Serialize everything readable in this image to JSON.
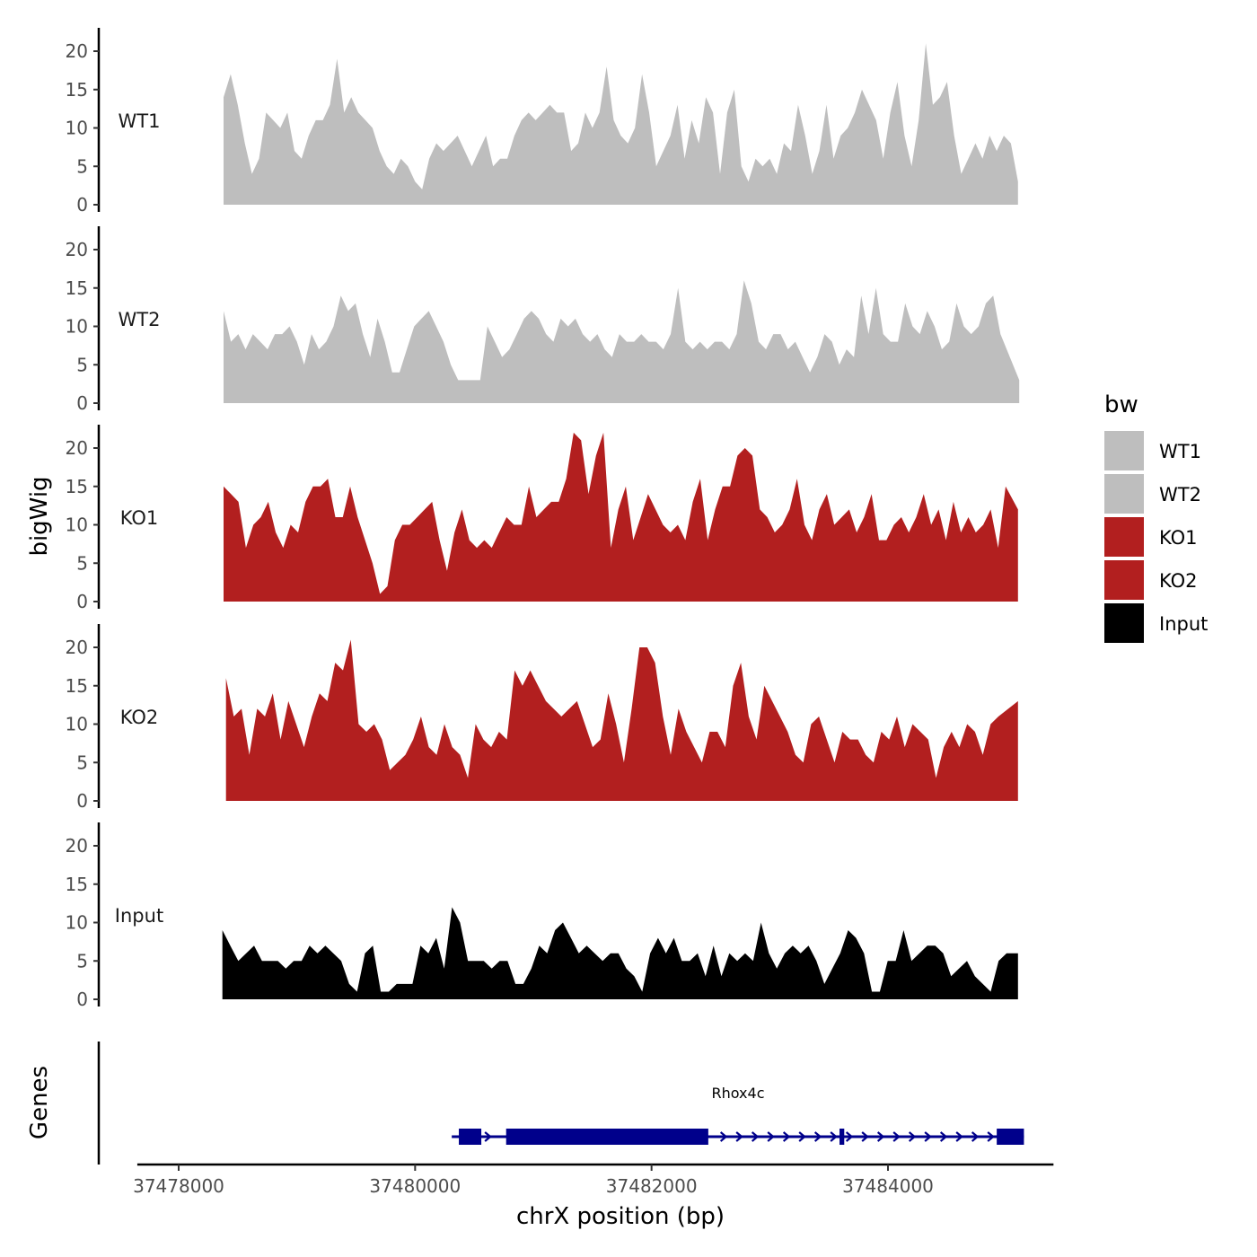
{
  "chart_data": {
    "type": "area",
    "ylabel": "bigWig",
    "xlabel": "chrX position (bp)",
    "ylim": [
      0,
      22
    ],
    "yticks": [
      0,
      5,
      10,
      15,
      20
    ],
    "xlim": [
      37477650,
      37485400
    ],
    "xticks": [
      37478000,
      37480000,
      37482000,
      37484000
    ],
    "xtick_labels": [
      "37478000",
      "37480000",
      "37482000",
      "37484000"
    ],
    "x_range": [
      37478380,
      37485110
    ],
    "legend": {
      "title": "bw",
      "entries": [
        {
          "label": "WT1",
          "color": "#bebebe"
        },
        {
          "label": "WT2",
          "color": "#bebebe"
        },
        {
          "label": "KO1",
          "color": "#b21f1f"
        },
        {
          "label": "KO2",
          "color": "#b21f1f"
        },
        {
          "label": "Input",
          "color": "#000000"
        }
      ]
    },
    "tracks": [
      {
        "name": "WT1",
        "color": "#bebebe",
        "values": [
          14,
          17,
          13,
          8,
          4,
          6,
          12,
          11,
          10,
          12,
          7,
          6,
          9,
          11,
          11,
          13,
          19,
          12,
          14,
          12,
          11,
          10,
          7,
          5,
          4,
          6,
          5,
          3,
          2,
          6,
          8,
          7,
          8,
          9,
          7,
          5,
          7,
          9,
          5,
          6,
          6,
          9,
          11,
          12,
          11,
          12,
          13,
          12,
          12,
          7,
          8,
          12,
          10,
          12,
          18,
          11,
          9,
          8,
          10,
          17,
          12,
          5,
          7,
          9,
          13,
          6,
          11,
          8,
          14,
          12,
          4,
          12,
          15,
          5,
          3,
          6,
          5,
          6,
          4,
          8,
          7,
          13,
          9,
          4,
          7,
          13,
          6,
          9,
          10,
          12,
          15,
          13,
          11,
          6,
          12,
          16,
          9,
          5,
          11,
          21,
          13,
          14,
          16,
          9,
          4,
          6,
          8,
          6,
          9,
          7,
          9,
          8,
          3
        ],
        "x": [
          37478380,
          37478440,
          37478500,
          37478560,
          37478620,
          37478680,
          37478740,
          37478800,
          37478860,
          37478920,
          37478980,
          37479040,
          37479100,
          37479160,
          37479220,
          37479280,
          37479340,
          37479400,
          37479460,
          37479520,
          37479580,
          37479640,
          37479700,
          37479760,
          37479820,
          37479880,
          37479940,
          37480000,
          37480060,
          37480120,
          37480180,
          37480240,
          37480300,
          37480360,
          37480420,
          37480480,
          37480540,
          37480600,
          37480660,
          37480720,
          37480780,
          37480840,
          37480900,
          37480960,
          37481020,
          37481080,
          37481140,
          37481200,
          37481260,
          37481320,
          37481380,
          37481440,
          37481500,
          37481560,
          37481620,
          37481680,
          37481740,
          37481800,
          37481860,
          37481920,
          37481980,
          37482040,
          37482100,
          37482160,
          37482220,
          37482280,
          37482340,
          37482400,
          37482460,
          37482520,
          37482580,
          37482640,
          37482700,
          37482760,
          37482820,
          37482880,
          37482940,
          37483000,
          37483060,
          37483120,
          37483180,
          37483240,
          37483300,
          37483360,
          37483420,
          37483480,
          37483540,
          37483600,
          37483660,
          37483720,
          37483780,
          37483840,
          37483900,
          37483960,
          37484020,
          37484080,
          37484140,
          37484200,
          37484260,
          37484320,
          37484380,
          37484440,
          37484500,
          37484560,
          37484620,
          37484680,
          37484740,
          37484800,
          37484860,
          37484920,
          37484980,
          37485040,
          37485100
        ]
      },
      {
        "name": "WT2",
        "color": "#bebebe",
        "values": [
          12,
          8,
          9,
          7,
          9,
          8,
          7,
          9,
          9,
          10,
          8,
          5,
          9,
          7,
          8,
          10,
          14,
          12,
          13,
          9,
          6,
          11,
          8,
          4,
          4,
          7,
          10,
          11,
          12,
          10,
          8,
          5,
          3,
          3,
          3,
          3,
          10,
          8,
          6,
          7,
          9,
          11,
          12,
          11,
          9,
          8,
          11,
          10,
          11,
          9,
          8,
          9,
          7,
          6,
          9,
          8,
          8,
          9,
          8,
          8,
          7,
          9,
          15,
          8,
          7,
          8,
          7,
          8,
          8,
          7,
          9,
          16,
          13,
          8,
          7,
          9,
          9,
          7,
          8,
          6,
          4,
          6,
          9,
          8,
          5,
          7,
          6,
          14,
          9,
          15,
          9,
          8,
          8,
          13,
          10,
          9,
          12,
          10,
          7,
          8,
          13,
          10,
          9,
          10,
          13,
          14,
          9,
          3
        ],
        "x": [
          37478380,
          37478442,
          37478504,
          37478566,
          37478628,
          37478690,
          37478752,
          37478814,
          37478876,
          37478938,
          37479000,
          37479062,
          37479124,
          37479186,
          37479248,
          37479310,
          37479372,
          37479434,
          37479496,
          37479558,
          37479620,
          37479682,
          37479744,
          37479806,
          37479868,
          37479930,
          37479992,
          37480054,
          37480116,
          37480178,
          37480240,
          37480302,
          37480364,
          37480426,
          37480488,
          37480550,
          37480612,
          37480674,
          37480736,
          37480798,
          37480860,
          37480922,
          37480984,
          37481046,
          37481108,
          37481170,
          37481232,
          37481294,
          37481356,
          37481418,
          37481480,
          37481542,
          37481604,
          37481666,
          37481728,
          37481790,
          37481852,
          37481914,
          37481976,
          37482038,
          37482100,
          37482162,
          37482224,
          37482286,
          37482348,
          37482410,
          37482472,
          37482534,
          37482596,
          37482658,
          37482720,
          37482782,
          37482844,
          37482906,
          37482968,
          37483030,
          37483092,
          37483154,
          37483216,
          37483278,
          37483340,
          37483402,
          37483464,
          37483526,
          37483588,
          37483650,
          37483712,
          37483774,
          37483836,
          37483898,
          37483960,
          37484022,
          37484084,
          37484146,
          37484208,
          37484270,
          37484332,
          37484394,
          37484456,
          37484518,
          37484580,
          37484642,
          37484704,
          37484766,
          37484828,
          37484890,
          37484952,
          37485110
        ]
      },
      {
        "name": "KO1",
        "color": "#b21f1f",
        "values": [
          15,
          14,
          13,
          7,
          10,
          11,
          13,
          9,
          7,
          10,
          9,
          13,
          15,
          15,
          16,
          11,
          11,
          15,
          11,
          8,
          5,
          1,
          2,
          8,
          10,
          10,
          11,
          12,
          13,
          8,
          4,
          9,
          12,
          8,
          7,
          8,
          7,
          9,
          11,
          10,
          10,
          15,
          11,
          12,
          13,
          13,
          16,
          22,
          21,
          14,
          19,
          22,
          7,
          12,
          15,
          8,
          11,
          14,
          12,
          10,
          9,
          10,
          8,
          13,
          16,
          8,
          12,
          15,
          15,
          19,
          20,
          19,
          12,
          11,
          9,
          10,
          12,
          16,
          10,
          8,
          12,
          14,
          10,
          11,
          12,
          9,
          11,
          14,
          8,
          8,
          10,
          11,
          9,
          11,
          14,
          10,
          12,
          8,
          13,
          9,
          11,
          9,
          10,
          12,
          7,
          15,
          12
        ],
        "x": [
          37478380,
          37478443,
          37478506,
          37478569,
          37478632,
          37478695,
          37478758,
          37478821,
          37478884,
          37478947,
          37479010,
          37479073,
          37479136,
          37479199,
          37479262,
          37479325,
          37479388,
          37479451,
          37479514,
          37479577,
          37479640,
          37479703,
          37479766,
          37479829,
          37479892,
          37479955,
          37480018,
          37480081,
          37480144,
          37480207,
          37480270,
          37480333,
          37480396,
          37480459,
          37480522,
          37480585,
          37480648,
          37480711,
          37480774,
          37480837,
          37480900,
          37480963,
          37481026,
          37481089,
          37481152,
          37481215,
          37481278,
          37481341,
          37481404,
          37481467,
          37481530,
          37481593,
          37481656,
          37481719,
          37481782,
          37481845,
          37481908,
          37481971,
          37482034,
          37482097,
          37482160,
          37482223,
          37482286,
          37482349,
          37482412,
          37482475,
          37482538,
          37482601,
          37482664,
          37482727,
          37482790,
          37482853,
          37482916,
          37482979,
          37483042,
          37483105,
          37483168,
          37483231,
          37483294,
          37483357,
          37483420,
          37483483,
          37483546,
          37483609,
          37483672,
          37483735,
          37483798,
          37483861,
          37483924,
          37483987,
          37484050,
          37484113,
          37484176,
          37484239,
          37484302,
          37484365,
          37484428,
          37484491,
          37484554,
          37484617,
          37484680,
          37484743,
          37484806,
          37484869,
          37484932,
          37484995,
          37485100
        ]
      },
      {
        "name": "KO2",
        "color": "#b21f1f",
        "values": [
          16,
          11,
          12,
          6,
          12,
          11,
          14,
          8,
          13,
          10,
          7,
          11,
          14,
          13,
          18,
          17,
          21,
          10,
          9,
          10,
          8,
          4,
          5,
          6,
          8,
          11,
          7,
          6,
          10,
          7,
          6,
          3,
          10,
          8,
          7,
          9,
          8,
          17,
          15,
          17,
          15,
          13,
          12,
          11,
          12,
          13,
          10,
          7,
          8,
          14,
          10,
          5,
          12,
          20,
          20,
          18,
          11,
          6,
          12,
          9,
          7,
          5,
          9,
          9,
          7,
          15,
          18,
          11,
          8,
          15,
          13,
          11,
          9,
          6,
          5,
          10,
          11,
          8,
          5,
          9,
          8,
          8,
          6,
          5,
          9,
          8,
          11,
          7,
          10,
          9,
          8,
          3,
          7,
          9,
          7,
          10,
          9,
          6,
          10,
          11,
          13
        ],
        "x": [
          37478400,
          37478466,
          37478532,
          37478598,
          37478664,
          37478730,
          37478796,
          37478862,
          37478928,
          37478994,
          37479060,
          37479126,
          37479192,
          37479258,
          37479324,
          37479390,
          37479456,
          37479522,
          37479588,
          37479654,
          37479720,
          37479786,
          37479852,
          37479918,
          37479984,
          37480050,
          37480116,
          37480182,
          37480248,
          37480314,
          37480380,
          37480446,
          37480512,
          37480578,
          37480644,
          37480710,
          37480776,
          37480842,
          37480908,
          37480974,
          37481040,
          37481106,
          37481172,
          37481238,
          37481304,
          37481370,
          37481436,
          37481502,
          37481568,
          37481634,
          37481700,
          37481766,
          37481832,
          37481898,
          37481964,
          37482030,
          37482096,
          37482162,
          37482228,
          37482294,
          37482360,
          37482426,
          37482492,
          37482558,
          37482624,
          37482690,
          37482756,
          37482822,
          37482888,
          37482954,
          37483020,
          37483086,
          37483152,
          37483218,
          37483284,
          37483350,
          37483416,
          37483482,
          37483548,
          37483614,
          37483680,
          37483746,
          37483812,
          37483878,
          37483944,
          37484010,
          37484076,
          37484142,
          37484208,
          37484274,
          37484340,
          37484406,
          37484472,
          37484538,
          37484604,
          37484670,
          37484736,
          37484802,
          37484868,
          37484934,
          37485100
        ]
      },
      {
        "name": "Input",
        "color": "#000000",
        "values": [
          9,
          7,
          5,
          6,
          7,
          5,
          5,
          5,
          4,
          5,
          5,
          7,
          6,
          7,
          6,
          5,
          2,
          1,
          6,
          7,
          1,
          1,
          2,
          2,
          2,
          7,
          6,
          8,
          4,
          12,
          10,
          5,
          5,
          5,
          4,
          5,
          5,
          2,
          2,
          4,
          7,
          6,
          9,
          10,
          8,
          6,
          7,
          6,
          5,
          6,
          6,
          4,
          3,
          1,
          6,
          8,
          6,
          8,
          5,
          5,
          6,
          3,
          7,
          3,
          6,
          5,
          6,
          5,
          10,
          6,
          4,
          6,
          7,
          6,
          7,
          5,
          2,
          4,
          6,
          9,
          8,
          6,
          1,
          1,
          5,
          5,
          9,
          5,
          6,
          7,
          7,
          6,
          3,
          4,
          5,
          3,
          2,
          1,
          5,
          6,
          6
        ],
        "x": [
          37478370,
          37478437,
          37478504,
          37478571,
          37478638,
          37478705,
          37478772,
          37478839,
          37478906,
          37478973,
          37479040,
          37479107,
          37479174,
          37479241,
          37479308,
          37479375,
          37479442,
          37479509,
          37479576,
          37479643,
          37479710,
          37479777,
          37479844,
          37479911,
          37479978,
          37480045,
          37480112,
          37480179,
          37480246,
          37480313,
          37480380,
          37480447,
          37480514,
          37480581,
          37480648,
          37480715,
          37480782,
          37480849,
          37480916,
          37480983,
          37481050,
          37481117,
          37481184,
          37481251,
          37481318,
          37481385,
          37481452,
          37481519,
          37481586,
          37481653,
          37481720,
          37481787,
          37481854,
          37481921,
          37481988,
          37482055,
          37482122,
          37482189,
          37482256,
          37482323,
          37482390,
          37482457,
          37482524,
          37482591,
          37482658,
          37482725,
          37482792,
          37482859,
          37482926,
          37482993,
          37483060,
          37483127,
          37483194,
          37483261,
          37483328,
          37483395,
          37483462,
          37483529,
          37483596,
          37483663,
          37483730,
          37483797,
          37483864,
          37483931,
          37483998,
          37484065,
          37484132,
          37484199,
          37484266,
          37484333,
          37484400,
          37484467,
          37484534,
          37484601,
          37484668,
          37484735,
          37484802,
          37484869,
          37484936,
          37485003,
          37485100
        ]
      }
    ],
    "genes": {
      "ylabel": "Genes",
      "color": "#00008b",
      "items": [
        {
          "name": "Rhox4c",
          "start": 37480310,
          "end": 37485150,
          "strand": "+",
          "exons": [
            [
              37480370,
              37480560
            ],
            [
              37480770,
              37482480
            ],
            [
              37483590,
              37483630
            ],
            [
              37484920,
              37485150
            ]
          ]
        }
      ]
    }
  }
}
